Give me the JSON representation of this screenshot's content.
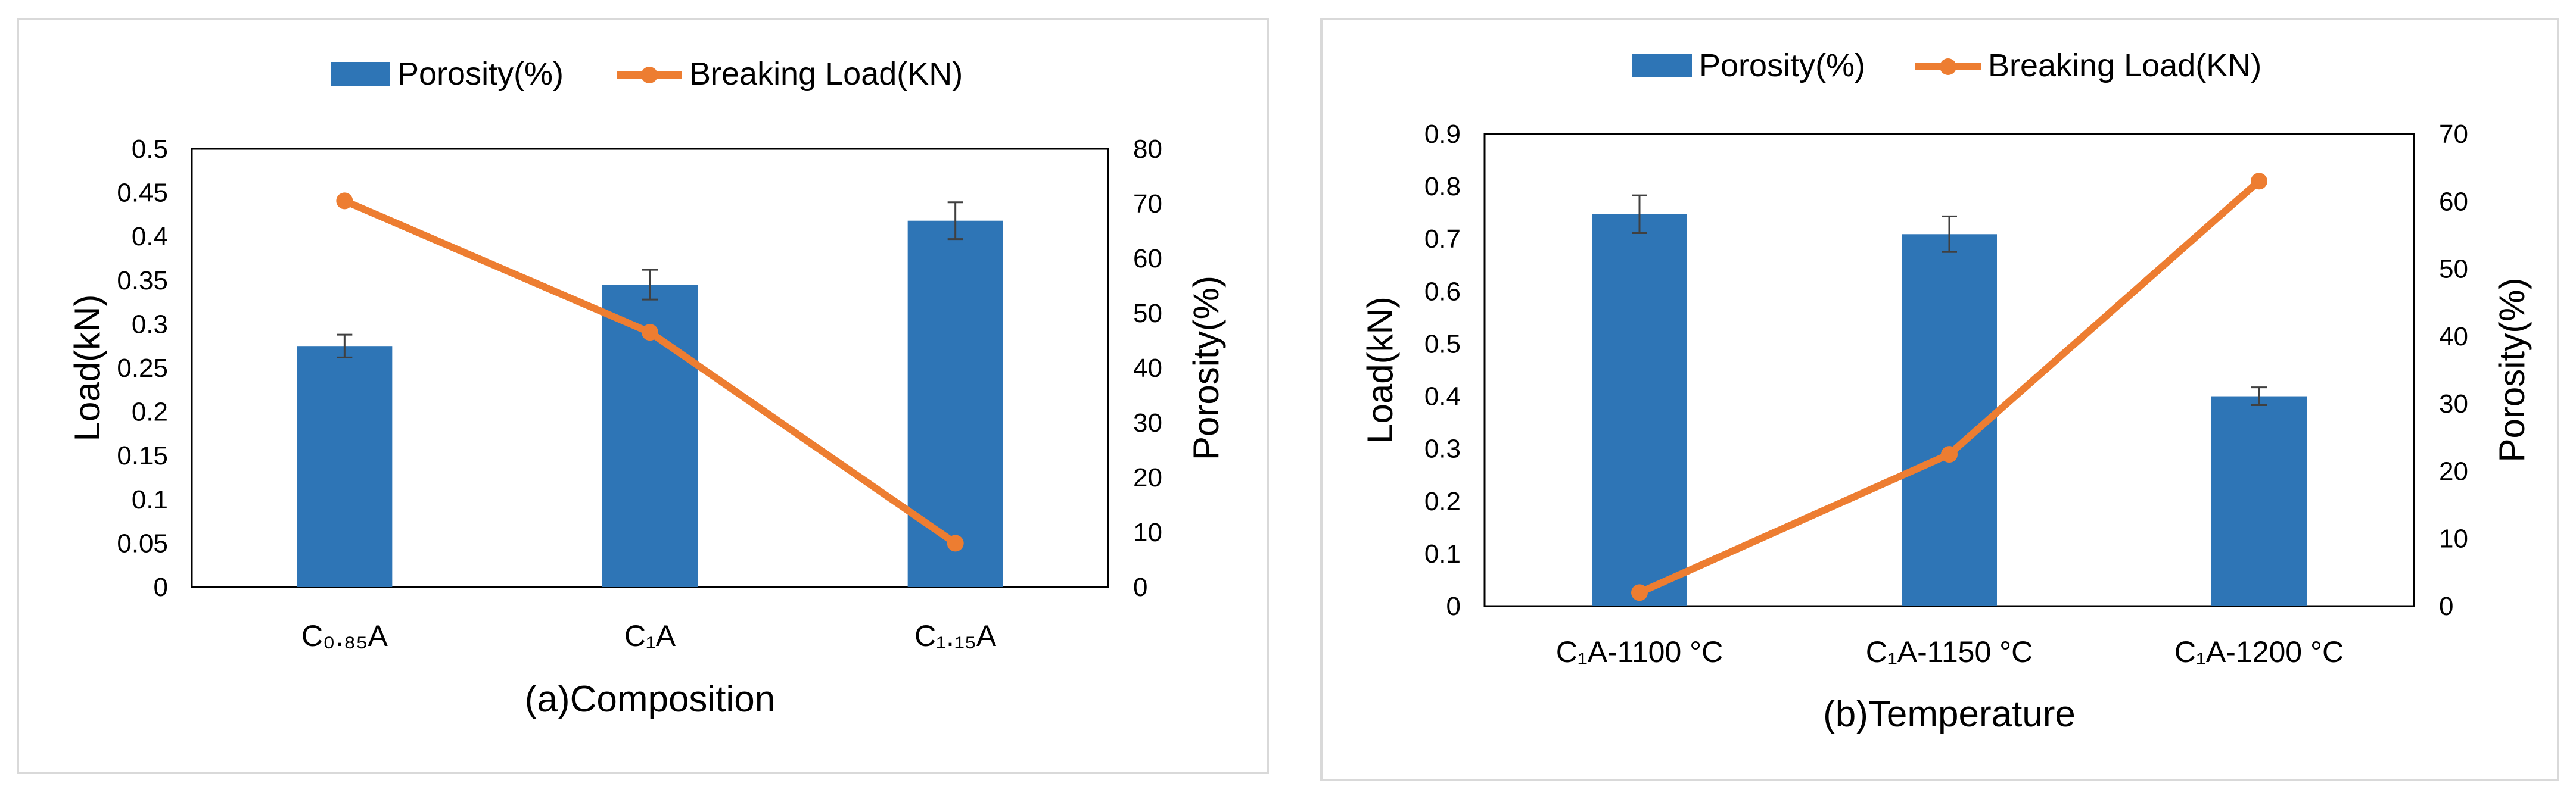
{
  "colors": {
    "bar": "#2e75b6",
    "line": "#ed7d31",
    "frame": "#d9d9d9",
    "axis": "#000000",
    "error": "#404040"
  },
  "chart_data": [
    {
      "type": "bar+line",
      "title": "",
      "xlabel": "(a)Composition",
      "categories": [
        "C₀.₈₅A",
        "C₁A",
        "C₁.₁₅A"
      ],
      "legend": {
        "position": "top",
        "bar_name": "Porosity(%)",
        "line_name": "Breaking Load(KN)"
      },
      "left_axis": {
        "label": "Load(kN)",
        "ylim": [
          0,
          0.5
        ],
        "ticks": [
          "0",
          "0.05",
          "0.1",
          "0.15",
          "0.2",
          "0.25",
          "0.3",
          "0.35",
          "0.4",
          "0.45",
          "0.5"
        ]
      },
      "right_axis": {
        "label": "Porosity(%)",
        "ylim": [
          0,
          80
        ],
        "ticks": [
          "0",
          "10",
          "20",
          "30",
          "40",
          "50",
          "60",
          "70",
          "80"
        ]
      },
      "series": [
        {
          "name": "Porosity(%)",
          "type": "bar",
          "axis": "left",
          "values": [
            0.275,
            0.345,
            0.418
          ],
          "error": [
            0.013,
            0.017,
            0.021
          ]
        },
        {
          "name": "Breaking Load(KN)",
          "type": "line",
          "axis": "right",
          "values": [
            70.5,
            46.5,
            8.0
          ]
        }
      ]
    },
    {
      "type": "bar+line",
      "title": "",
      "xlabel": "(b)Temperature",
      "categories": [
        "C₁A-1100 °C",
        "C₁A-1150 °C",
        "C₁A-1200 °C"
      ],
      "legend": {
        "position": "top",
        "bar_name": "Porosity(%)",
        "line_name": "Breaking Load(KN)"
      },
      "left_axis": {
        "label": "Load(kN)",
        "ylim": [
          0,
          0.9
        ],
        "ticks": [
          "0",
          "0.1",
          "0.2",
          "0.3",
          "0.4",
          "0.5",
          "0.6",
          "0.7",
          "0.8",
          "0.9"
        ]
      },
      "right_axis": {
        "label": "Porosity(%)",
        "ylim": [
          0,
          70
        ],
        "ticks": [
          "0",
          "10",
          "20",
          "30",
          "40",
          "50",
          "60",
          "70"
        ]
      },
      "series": [
        {
          "name": "Porosity(%)",
          "type": "bar",
          "axis": "left",
          "values": [
            0.747,
            0.709,
            0.4
          ],
          "error": [
            0.036,
            0.034,
            0.017
          ]
        },
        {
          "name": "Breaking Load(KN)",
          "type": "line",
          "axis": "right",
          "values": [
            2.0,
            22.5,
            63.0
          ]
        }
      ]
    }
  ]
}
